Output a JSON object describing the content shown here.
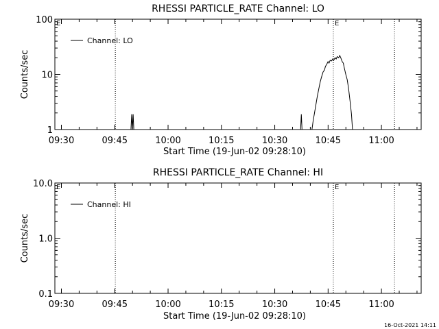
{
  "timestamp": "16-Oct-2021 14:11",
  "chart_data": [
    {
      "type": "line",
      "title": "RHESSI PARTICLE_RATE Channel: LO",
      "xlabel": "Start Time (19-Jun-02 09:28:10)",
      "ylabel": "Counts/sec",
      "yscale": "log",
      "ylim": [
        1,
        100
      ],
      "xlim_minutes": [
        0,
        103
      ],
      "yticks": [
        {
          "value": 1,
          "label": "1"
        },
        {
          "value": 10,
          "label": "10"
        },
        {
          "value": 100,
          "label": "100"
        }
      ],
      "xticks": [
        {
          "value": 1.83,
          "label": "09:30"
        },
        {
          "value": 16.83,
          "label": "09:45"
        },
        {
          "value": 31.83,
          "label": "10:00"
        },
        {
          "value": 46.83,
          "label": "10:15"
        },
        {
          "value": 61.83,
          "label": "10:30"
        },
        {
          "value": 76.83,
          "label": "10:45"
        },
        {
          "value": 91.83,
          "label": "11:00"
        }
      ],
      "legend": {
        "label": "Channel: LO",
        "position": "top-left"
      },
      "markers": [
        {
          "x": 17.0,
          "label": ""
        },
        {
          "x": 78.3,
          "label": "E"
        },
        {
          "x": 95.5,
          "label": ""
        }
      ],
      "corner_label": "E",
      "series": [
        {
          "name": "Channel: LO",
          "points": [
            [
              21.4,
              1
            ],
            [
              21.6,
              1.9
            ],
            [
              21.8,
              1
            ],
            [
              22.0,
              1.9
            ],
            [
              22.2,
              1
            ]
          ]
        },
        {
          "name": "Channel: LO",
          "points": [
            [
              69.1,
              1
            ],
            [
              69.3,
              1.9
            ],
            [
              69.5,
              1
            ]
          ]
        },
        {
          "name": "Channel: LO",
          "points": [
            [
              72.3,
              1
            ],
            [
              72.6,
              1.4
            ],
            [
              73.0,
              2.0
            ],
            [
              73.4,
              2.8
            ],
            [
              73.8,
              4.0
            ],
            [
              74.2,
              5.4
            ],
            [
              74.6,
              7.3
            ],
            [
              75.0,
              9.0
            ],
            [
              75.4,
              11
            ],
            [
              75.8,
              12
            ],
            [
              76.1,
              14
            ],
            [
              76.4,
              15
            ],
            [
              76.8,
              17
            ],
            [
              77.1,
              16
            ],
            [
              77.4,
              18
            ],
            [
              77.8,
              17.5
            ],
            [
              78.1,
              19
            ],
            [
              78.4,
              18
            ],
            [
              78.8,
              20
            ],
            [
              79.1,
              19
            ],
            [
              79.4,
              21
            ],
            [
              79.8,
              20
            ],
            [
              80.1,
              22
            ],
            [
              80.4,
              20
            ],
            [
              80.8,
              17
            ],
            [
              81.1,
              16
            ],
            [
              81.4,
              13
            ],
            [
              81.8,
              10
            ],
            [
              82.2,
              8
            ],
            [
              82.6,
              5.5
            ],
            [
              83.0,
              3.3
            ],
            [
              83.4,
              1.9
            ],
            [
              83.7,
              1
            ]
          ]
        }
      ]
    },
    {
      "type": "line",
      "title": "RHESSI PARTICLE_RATE Channel: HI",
      "xlabel": "Start Time (19-Jun-02 09:28:10)",
      "ylabel": "Counts/sec",
      "yscale": "log",
      "ylim": [
        0.1,
        10
      ],
      "xlim_minutes": [
        0,
        103
      ],
      "yticks": [
        {
          "value": 0.1,
          "label": "0.1"
        },
        {
          "value": 1,
          "label": "1.0"
        },
        {
          "value": 10,
          "label": "10.0"
        }
      ],
      "xticks": [
        {
          "value": 1.83,
          "label": "09:30"
        },
        {
          "value": 16.83,
          "label": "09:45"
        },
        {
          "value": 31.83,
          "label": "10:00"
        },
        {
          "value": 46.83,
          "label": "10:15"
        },
        {
          "value": 61.83,
          "label": "10:30"
        },
        {
          "value": 76.83,
          "label": "10:45"
        },
        {
          "value": 91.83,
          "label": "11:00"
        }
      ],
      "legend": {
        "label": "Channel: HI",
        "position": "top-left"
      },
      "markers": [
        {
          "x": 17.0,
          "label": ""
        },
        {
          "x": 78.3,
          "label": "E"
        },
        {
          "x": 95.5,
          "label": ""
        }
      ],
      "corner_label": "E",
      "series": []
    }
  ]
}
